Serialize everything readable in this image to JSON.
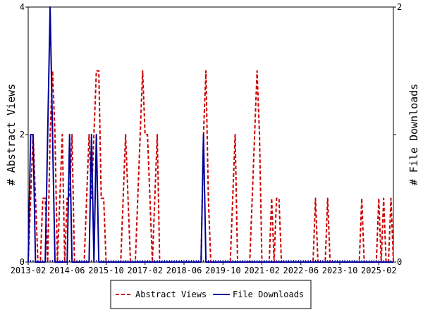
{
  "chart_data": {
    "type": "line",
    "x_start": "2013-02",
    "x_end": "2025-08",
    "x_ticks": [
      "2013-02",
      "2014-06",
      "2015-10",
      "2017-02",
      "2018-06",
      "2019-10",
      "2021-02",
      "2022-06",
      "2023-10",
      "2025-02"
    ],
    "ylabel_left": "# Abstract Views",
    "ylabel_right": "# File Downloads",
    "ylim_left": [
      0,
      4
    ],
    "ylim_right": [
      0,
      2
    ],
    "yticks_left": [
      "0",
      "2",
      "4"
    ],
    "yticks_right": [
      "0",
      "1",
      "2"
    ],
    "legend_position": "bottom-center",
    "series": [
      {
        "name": "Abstract Views",
        "axis": "left",
        "color": "#cc0000",
        "style": "dashed",
        "points": [
          [
            "2013-02",
            0
          ],
          [
            "2013-03",
            1
          ],
          [
            "2013-04",
            2
          ],
          [
            "2013-05",
            1
          ],
          [
            "2013-06",
            0
          ],
          [
            "2013-07",
            0
          ],
          [
            "2013-08",
            1
          ],
          [
            "2013-09",
            1
          ],
          [
            "2013-10",
            0
          ],
          [
            "2013-11",
            2
          ],
          [
            "2013-12",
            3
          ],
          [
            "2014-01",
            2
          ],
          [
            "2014-02",
            0
          ],
          [
            "2014-03",
            1
          ],
          [
            "2014-04",
            2
          ],
          [
            "2014-05",
            0
          ],
          [
            "2014-06",
            1
          ],
          [
            "2014-07",
            1
          ],
          [
            "2014-08",
            2
          ],
          [
            "2014-09",
            0
          ],
          [
            "2014-10",
            0
          ],
          [
            "2014-11",
            0
          ],
          [
            "2014-12",
            0
          ],
          [
            "2015-01",
            0
          ],
          [
            "2015-02",
            1
          ],
          [
            "2015-03",
            2
          ],
          [
            "2015-04",
            1
          ],
          [
            "2015-05",
            2
          ],
          [
            "2015-06",
            3
          ],
          [
            "2015-07",
            3
          ],
          [
            "2015-08",
            1
          ],
          [
            "2015-09",
            1
          ],
          [
            "2015-10",
            0
          ],
          [
            "2015-11",
            0
          ],
          [
            "2015-12",
            0
          ],
          [
            "2016-01",
            0
          ],
          [
            "2016-02",
            0
          ],
          [
            "2016-03",
            0
          ],
          [
            "2016-04",
            0
          ],
          [
            "2016-05",
            1
          ],
          [
            "2016-06",
            2
          ],
          [
            "2016-07",
            1
          ],
          [
            "2016-08",
            0
          ],
          [
            "2016-09",
            0
          ],
          [
            "2016-10",
            0
          ],
          [
            "2016-11",
            1
          ],
          [
            "2016-12",
            2
          ],
          [
            "2017-01",
            3
          ],
          [
            "2017-02",
            2
          ],
          [
            "2017-03",
            2
          ],
          [
            "2017-04",
            1
          ],
          [
            "2017-05",
            0
          ],
          [
            "2017-06",
            1
          ],
          [
            "2017-07",
            2
          ],
          [
            "2017-08",
            0
          ],
          [
            "2017-09",
            0
          ],
          [
            "2019-01",
            0
          ],
          [
            "2019-02",
            2
          ],
          [
            "2019-03",
            3
          ],
          [
            "2019-04",
            1
          ],
          [
            "2019-05",
            0
          ],
          [
            "2019-06",
            0
          ],
          [
            "2019-07",
            0
          ],
          [
            "2019-08",
            0
          ],
          [
            "2019-09",
            0
          ],
          [
            "2019-10",
            0
          ],
          [
            "2019-11",
            0
          ],
          [
            "2019-12",
            0
          ],
          [
            "2020-01",
            0
          ],
          [
            "2020-02",
            1
          ],
          [
            "2020-03",
            2
          ],
          [
            "2020-04",
            0
          ],
          [
            "2020-05",
            0
          ],
          [
            "2020-06",
            0
          ],
          [
            "2020-07",
            0
          ],
          [
            "2020-08",
            0
          ],
          [
            "2020-09",
            0
          ],
          [
            "2020-10",
            1
          ],
          [
            "2020-11",
            2
          ],
          [
            "2020-12",
            3
          ],
          [
            "2021-01",
            2
          ],
          [
            "2021-02",
            0
          ],
          [
            "2021-03",
            0
          ],
          [
            "2021-04",
            0
          ],
          [
            "2021-05",
            0
          ],
          [
            "2021-06",
            1
          ],
          [
            "2021-07",
            0
          ],
          [
            "2021-08",
            1
          ],
          [
            "2021-09",
            1
          ],
          [
            "2021-10",
            0
          ],
          [
            "2021-11",
            0
          ],
          [
            "2022-11",
            0
          ],
          [
            "2022-12",
            1
          ],
          [
            "2023-01",
            0
          ],
          [
            "2023-02",
            0
          ],
          [
            "2023-03",
            0
          ],
          [
            "2023-04",
            0
          ],
          [
            "2023-05",
            1
          ],
          [
            "2023-06",
            0
          ],
          [
            "2023-07",
            0
          ],
          [
            "2024-06",
            0
          ],
          [
            "2024-07",
            1
          ],
          [
            "2024-08",
            0
          ],
          [
            "2025-01",
            0
          ],
          [
            "2025-02",
            1
          ],
          [
            "2025-03",
            0
          ],
          [
            "2025-04",
            1
          ],
          [
            "2025-05",
            0
          ],
          [
            "2025-06",
            0
          ],
          [
            "2025-07",
            1
          ],
          [
            "2025-08",
            0
          ]
        ]
      },
      {
        "name": "File Downloads",
        "axis": "right",
        "color": "#000099",
        "style": "solid",
        "points": [
          [
            "2013-02",
            0
          ],
          [
            "2013-03",
            1
          ],
          [
            "2013-04",
            1
          ],
          [
            "2013-05",
            0
          ],
          [
            "2013-06",
            0
          ],
          [
            "2013-07",
            0
          ],
          [
            "2013-08",
            0
          ],
          [
            "2013-09",
            0
          ],
          [
            "2013-10",
            1
          ],
          [
            "2013-11",
            2
          ],
          [
            "2013-12",
            1
          ],
          [
            "2014-01",
            0
          ],
          [
            "2014-02",
            0
          ],
          [
            "2014-03",
            0
          ],
          [
            "2014-04",
            0
          ],
          [
            "2014-05",
            0
          ],
          [
            "2014-06",
            0
          ],
          [
            "2014-07",
            1
          ],
          [
            "2014-08",
            0
          ],
          [
            "2014-09",
            0
          ],
          [
            "2015-03",
            0
          ],
          [
            "2015-04",
            1
          ],
          [
            "2015-05",
            0
          ],
          [
            "2015-06",
            1
          ],
          [
            "2015-07",
            0
          ],
          [
            "2015-08",
            0
          ],
          [
            "2019-01",
            0
          ],
          [
            "2019-02",
            1
          ],
          [
            "2019-03",
            0
          ],
          [
            "2019-04",
            0
          ],
          [
            "2025-08",
            0
          ]
        ]
      }
    ]
  }
}
